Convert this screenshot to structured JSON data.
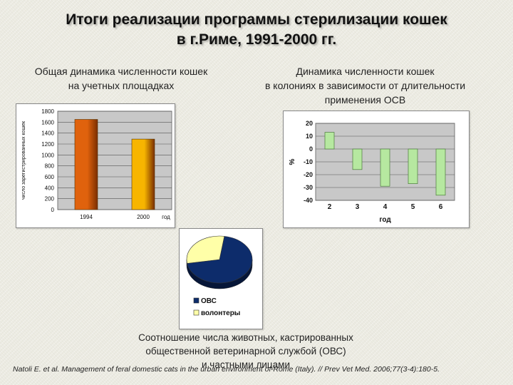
{
  "title_lines": [
    "Итоги реализации программы стерилизации кошек",
    "в г.Риме, 1991-2000 гг."
  ],
  "left_caption": [
    "Общая динамика численности кошек",
    "на учетных площадках"
  ],
  "right_caption": [
    "Динамика численности кошек",
    "в колониях в зависимости от длительности",
    "применения ОСВ"
  ],
  "bottom_caption": [
    "Соотношение числа животных, кастрированных",
    "общественной ветеринарной службой (ОВС)",
    "и частными лицами"
  ],
  "citation": "Natoli E. et al. Management of feral domestic cats in the urban environment of Rome (Italy). // Prev Vet Med. 2006;77(3-4):180-5.",
  "colors": {
    "bar_1994": "#e0620d",
    "bar_2000": "#f7b500",
    "bar_green": "#b6e8a0",
    "pie_ovs": "#0d2c6b",
    "pie_volunteers": "#ffffa8",
    "plot_bg": "#c8c8c8"
  },
  "chart_data": [
    {
      "type": "bar",
      "categories": [
        "1994",
        "2000"
      ],
      "values": [
        1650,
        1290
      ],
      "xlabel": "год",
      "ylabel": "число зарегистрированных кошек",
      "ylim": [
        0,
        1800
      ],
      "yticks": [
        0,
        200,
        400,
        600,
        800,
        1000,
        1200,
        1400,
        1600,
        1800
      ],
      "grid": true
    },
    {
      "type": "bar",
      "categories": [
        "2",
        "3",
        "4",
        "5",
        "6"
      ],
      "values": [
        13,
        -16,
        -29,
        -27,
        -36
      ],
      "xlabel": "год",
      "ylabel": "%",
      "ylim": [
        -40,
        20
      ],
      "yticks": [
        -40,
        -30,
        -20,
        -10,
        0,
        10,
        20
      ],
      "grid": true
    },
    {
      "type": "pie",
      "labels": [
        "ОВС",
        "волонтеры"
      ],
      "values": [
        70,
        30
      ],
      "legend": "bottom-left"
    }
  ]
}
